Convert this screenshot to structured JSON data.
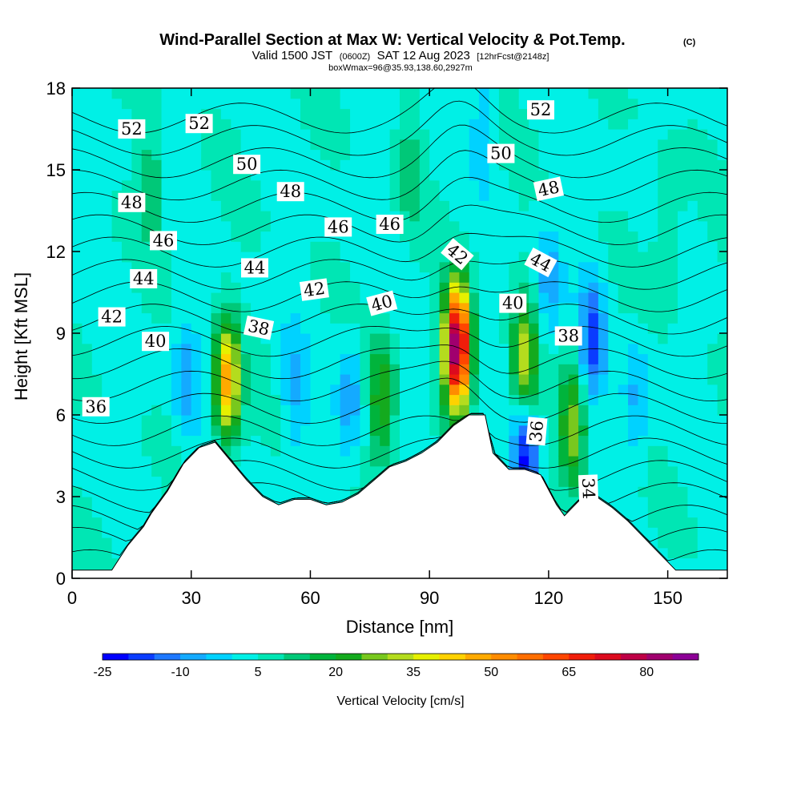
{
  "header": {
    "title": "Wind-Parallel Section at Max W: Vertical Velocity & Pot.Temp.",
    "title_mark": "(C)",
    "subtitle_a": "Valid 1500 JST",
    "subtitle_b": "(0600Z)",
    "subtitle_c": "SAT 12 Aug 2023",
    "subtitle_d": "[12hrFcst@2148z]",
    "subline": "boxWmax=96@35.93,138.60,2927m"
  },
  "chart_data": {
    "type": "heatmap",
    "title": "Wind-Parallel Section at Max W: Vertical Velocity & Pot.Temp.",
    "xlabel": "Distance [nm]",
    "ylabel": "Height [Kft MSL]",
    "xlim": [
      0,
      165
    ],
    "ylim": [
      0,
      18
    ],
    "xticks": [
      0,
      30,
      60,
      90,
      120,
      150
    ],
    "yticks": [
      0,
      3,
      6,
      9,
      12,
      15,
      18
    ],
    "grid": false,
    "colorbar": {
      "label": "Vertical Velocity [cm/s]",
      "tick_labels": [
        "-25",
        "-10",
        "5",
        "20",
        "35",
        "50",
        "65",
        "80"
      ],
      "tick_values": [
        -25,
        -10,
        5,
        20,
        35,
        50,
        65,
        80
      ],
      "bin_edges": [
        -25,
        -20,
        -15,
        -10,
        -5,
        0,
        5,
        10,
        15,
        20,
        25,
        30,
        35,
        40,
        45,
        50,
        55,
        60,
        65,
        70,
        75,
        80,
        85,
        90
      ],
      "colors": [
        "#0000ff",
        "#0a3cff",
        "#1e78ff",
        "#14aaff",
        "#00d2ff",
        "#00f0e6",
        "#00e6b4",
        "#00c878",
        "#00b43c",
        "#14aa1e",
        "#78c81e",
        "#b4dc1e",
        "#e6f000",
        "#ffd200",
        "#ffaa00",
        "#ff8c00",
        "#ff6e00",
        "#ff4600",
        "#f01e0a",
        "#dc0a1e",
        "#be0046",
        "#a0006e",
        "#8c0096"
      ],
      "position": "bottom"
    },
    "terrain_x": [
      0,
      10,
      14,
      18,
      20,
      24,
      28,
      32,
      36,
      40,
      44,
      48,
      52,
      56,
      60,
      64,
      68,
      72,
      76,
      80,
      84,
      88,
      92,
      96,
      100,
      104,
      106,
      110,
      114,
      118,
      122,
      124,
      128,
      132,
      136,
      140,
      144,
      148,
      152,
      158,
      164
    ],
    "terrain_y": [
      0.3,
      0.3,
      1.2,
      1.9,
      2.4,
      3.2,
      4.2,
      4.8,
      5.0,
      4.3,
      3.6,
      3.0,
      2.7,
      2.9,
      2.9,
      2.7,
      2.8,
      3.1,
      3.6,
      4.1,
      4.3,
      4.6,
      5.0,
      5.6,
      6.0,
      6.0,
      4.6,
      4.0,
      4.0,
      3.8,
      2.7,
      2.3,
      2.9,
      3.0,
      2.6,
      2.1,
      1.5,
      0.9,
      0.3,
      0.3,
      0.3
    ],
    "w_cores": [
      {
        "x": 97,
        "z": 8.5,
        "w": 85
      },
      {
        "x": 39,
        "z": 7.2,
        "w": 45
      },
      {
        "x": 114,
        "z": 7.9,
        "w": 30
      },
      {
        "x": 78,
        "z": 6.5,
        "w": 22
      },
      {
        "x": 126,
        "z": 5.5,
        "w": 25
      },
      {
        "x": 20,
        "z": 14.5,
        "w": 10
      },
      {
        "x": 150,
        "z": 13,
        "w": 10
      },
      {
        "x": 85,
        "z": 15,
        "w": 8
      }
    ],
    "w_minima": [
      {
        "x": 131,
        "z": 8.8,
        "w": -20
      },
      {
        "x": 114,
        "z": 4.5,
        "w": -25
      },
      {
        "x": 56,
        "z": 6.8,
        "w": -10
      },
      {
        "x": 70,
        "z": 6.6,
        "w": -12
      },
      {
        "x": 29,
        "z": 7.3,
        "w": -12
      },
      {
        "x": 104,
        "z": 17,
        "w": -8
      },
      {
        "x": 120,
        "z": 10.8,
        "w": -12
      },
      {
        "x": 142,
        "z": 6.5,
        "w": -10
      }
    ],
    "theta_levels": [
      34,
      35,
      36,
      37,
      38,
      39,
      40,
      41,
      42,
      43,
      44,
      45,
      46,
      47,
      48,
      49,
      50,
      51,
      52,
      53,
      54
    ],
    "theta_labels": [
      {
        "text": "52",
        "x": 15,
        "z": 16.5,
        "angle": 0
      },
      {
        "text": "52",
        "x": 32,
        "z": 16.7,
        "angle": 0
      },
      {
        "text": "50",
        "x": 44,
        "z": 15.2,
        "angle": 0
      },
      {
        "text": "48",
        "x": 15,
        "z": 13.8,
        "angle": 0
      },
      {
        "text": "48",
        "x": 55,
        "z": 14.2,
        "angle": 0
      },
      {
        "text": "46",
        "x": 23,
        "z": 12.4,
        "angle": 0
      },
      {
        "text": "46",
        "x": 67,
        "z": 12.9,
        "angle": 0
      },
      {
        "text": "46",
        "x": 80,
        "z": 13.0,
        "angle": 0
      },
      {
        "text": "44",
        "x": 18,
        "z": 11.0,
        "angle": 0
      },
      {
        "text": "44",
        "x": 46,
        "z": 11.4,
        "angle": 0
      },
      {
        "text": "42",
        "x": 10,
        "z": 9.6,
        "angle": 0
      },
      {
        "text": "42",
        "x": 61,
        "z": 10.6,
        "angle": -8
      },
      {
        "text": "42",
        "x": 97,
        "z": 11.9,
        "angle": 40
      },
      {
        "text": "40",
        "x": 21,
        "z": 8.7,
        "angle": 0
      },
      {
        "text": "40",
        "x": 78,
        "z": 10.1,
        "angle": -15
      },
      {
        "text": "40",
        "x": 111,
        "z": 10.1,
        "angle": 0
      },
      {
        "text": "38",
        "x": 47,
        "z": 9.2,
        "angle": 12
      },
      {
        "text": "38",
        "x": 125,
        "z": 8.9,
        "angle": 0
      },
      {
        "text": "36",
        "x": 6,
        "z": 6.3,
        "angle": 0
      },
      {
        "text": "36",
        "x": 117,
        "z": 5.4,
        "angle": -85
      },
      {
        "text": "34",
        "x": 130,
        "z": 3.3,
        "angle": 88
      },
      {
        "text": "50",
        "x": 108,
        "z": 15.6,
        "angle": 0
      },
      {
        "text": "48",
        "x": 120,
        "z": 14.3,
        "angle": -12
      },
      {
        "text": "44",
        "x": 118,
        "z": 11.6,
        "angle": 28
      },
      {
        "text": "52",
        "x": 118,
        "z": 17.2,
        "angle": 0
      }
    ]
  }
}
